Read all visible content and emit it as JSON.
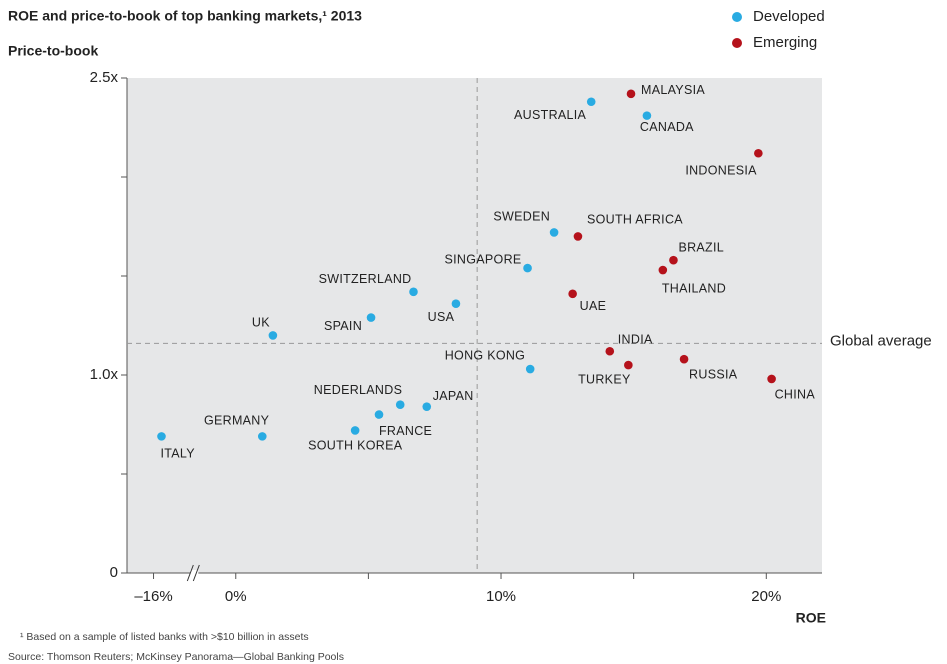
{
  "chart_data": {
    "type": "scatter",
    "title": "ROE and price-to-book of top banking markets,¹ 2013",
    "y_label": "Price-to-book",
    "x_label": "ROE",
    "footnote": "¹ Based on a sample of listed banks with >$10 billion in assets",
    "source": "Source: Thomson Reuters; McKinsey Panorama—Global Banking Pools",
    "xlim": [
      -17,
      22.1
    ],
    "x_break": [
      -14.5,
      -1.6
    ],
    "ylim": [
      0,
      2.5
    ],
    "xticks": [
      {
        "value": -16,
        "label": "–16%"
      },
      {
        "value": 0,
        "label": "0%"
      },
      {
        "value": 10,
        "label": "10%"
      },
      {
        "value": 20,
        "label": "20%"
      }
    ],
    "minor_xticks": [
      5,
      15
    ],
    "yticks": [
      0,
      {
        "value": 1.0,
        "label": "1.0x"
      },
      {
        "value": 2.5,
        "label": "2.5x"
      }
    ],
    "minor_yticks": [
      0.5,
      1.5,
      2.0
    ],
    "reference_lines": {
      "y": 1.16,
      "y_label": "Global average",
      "x": 9.1
    },
    "legend": "top-right",
    "series": [
      {
        "name": "Developed",
        "color": "#29abe2",
        "labels": [
          "AUSTRALIA",
          "CANADA",
          "SWEDEN",
          "SINGAPORE",
          "SWITZERLAND",
          "USA",
          "SPAIN",
          "UK",
          "HONG KONG",
          "NEDERLANDS",
          "JAPAN",
          "FRANCE",
          "SOUTH KOREA",
          "GERMANY",
          "ITALY"
        ],
        "x": [
          13.4,
          15.5,
          12.0,
          11.0,
          6.7,
          8.3,
          5.1,
          1.4,
          11.1,
          6.2,
          7.2,
          5.4,
          4.5,
          1.0,
          -15.7
        ],
        "values": [
          2.38,
          2.31,
          1.72,
          1.54,
          1.42,
          1.36,
          1.29,
          1.2,
          1.03,
          0.85,
          0.84,
          0.8,
          0.72,
          0.69,
          0.69
        ]
      },
      {
        "name": "Emerging",
        "color": "#b5121b",
        "labels": [
          "MALAYSIA",
          "INDONESIA",
          "SOUTH AFRICA",
          "BRAZIL",
          "THAILAND",
          "UAE",
          "INDIA",
          "TURKEY",
          "RUSSIA",
          "CHINA"
        ],
        "x": [
          14.9,
          19.7,
          12.9,
          16.5,
          16.1,
          12.7,
          14.1,
          14.8,
          16.9,
          20.2
        ],
        "values": [
          2.42,
          2.12,
          1.7,
          1.58,
          1.53,
          1.41,
          1.12,
          1.05,
          1.08,
          0.98
        ]
      }
    ]
  }
}
